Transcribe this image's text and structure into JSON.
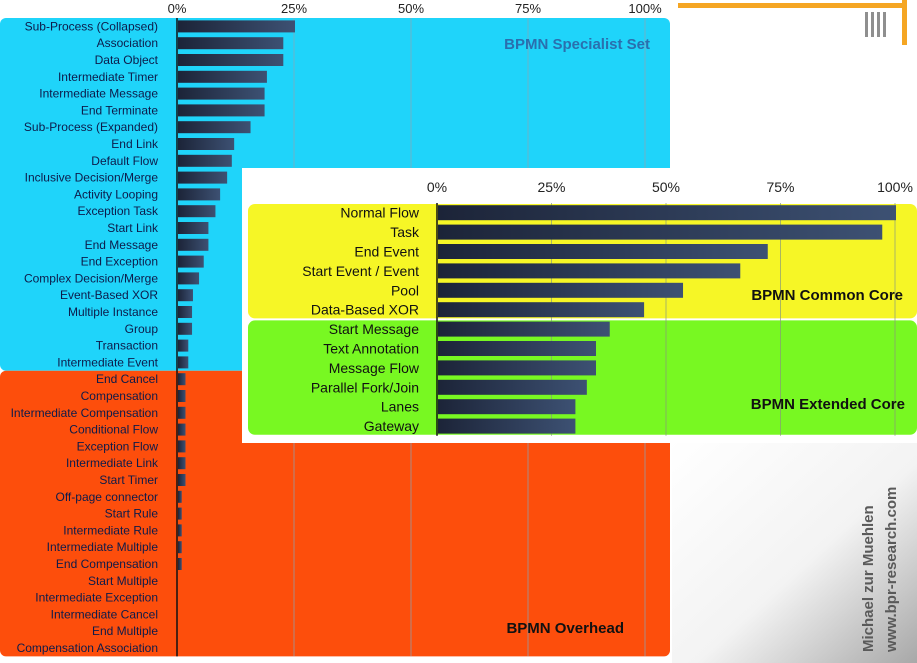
{
  "chart_data": [
    {
      "type": "bar",
      "orientation": "horizontal",
      "x_ticks": [
        "0%",
        "25%",
        "50%",
        "75%",
        "100%"
      ],
      "xlim": [
        0,
        100
      ],
      "grid": true,
      "groups": [
        {
          "name": "BPMN Specialist Set",
          "color": "#1fd4fa"
        },
        {
          "name": "BPMN Overhead",
          "color": "#fd4e0c"
        }
      ],
      "categories": [
        "Sub-Process (Collapsed)",
        "Association",
        "Data Object",
        "Intermediate Timer",
        "Intermediate Message",
        "End Terminate",
        "Sub-Process (Expanded)",
        "End Link",
        "Default Flow",
        "Inclusive Decision/Merge",
        "Activity Looping",
        "Exception Task",
        "Start Link",
        "End Message",
        "End Exception",
        "Complex Decision/Merge",
        "Event-Based XOR",
        "Multiple Instance",
        "Group",
        "Transaction",
        "Intermediate Event",
        "End Cancel",
        "Compensation",
        "Intermediate Compensation",
        "Conditional Flow",
        "Exception Flow",
        "Intermediate Link",
        "Start Timer",
        "Off-page connector",
        "Start Rule",
        "Intermediate Rule",
        "Intermediate Multiple",
        "End Compensation",
        "Start Multiple",
        "Intermediate Exception",
        "Intermediate Cancel",
        "End Multiple",
        "Compensation Association"
      ],
      "group_of_category": [
        0,
        0,
        0,
        0,
        0,
        0,
        0,
        0,
        0,
        0,
        0,
        0,
        0,
        0,
        0,
        0,
        0,
        0,
        0,
        0,
        0,
        1,
        1,
        1,
        1,
        1,
        1,
        1,
        1,
        1,
        1,
        1,
        1,
        1,
        1,
        1,
        1,
        1
      ],
      "values": [
        25,
        22.5,
        22.5,
        19,
        18.5,
        18.5,
        15.5,
        12,
        11.5,
        10.5,
        9,
        8,
        6.5,
        6.5,
        5.5,
        4.5,
        3.2,
        3,
        3,
        2.2,
        2.2,
        1.6,
        1.6,
        1.6,
        1.6,
        1.6,
        1.6,
        1.6,
        0.8,
        0.8,
        0.8,
        0.8,
        0.8,
        0,
        0,
        0,
        0,
        0
      ]
    },
    {
      "type": "bar",
      "orientation": "horizontal",
      "x_ticks": [
        "0%",
        "25%",
        "50%",
        "75%",
        "100%"
      ],
      "xlim": [
        0,
        100
      ],
      "grid": true,
      "groups": [
        {
          "name": "BPMN Common Core",
          "color": "#f6f626"
        },
        {
          "name": "BPMN Extended Core",
          "color": "#78f822"
        }
      ],
      "categories": [
        "Normal Flow",
        "Task",
        "End Event",
        "Start Event / Event",
        "Pool",
        "Data-Based XOR",
        "Start Message",
        "Text Annotation",
        "Message Flow",
        "Parallel Fork/Join",
        "Lanes",
        "Gateway"
      ],
      "group_of_category": [
        0,
        0,
        0,
        0,
        0,
        0,
        1,
        1,
        1,
        1,
        1,
        1
      ],
      "values": [
        100,
        97,
        72,
        66,
        53.5,
        45,
        37.5,
        34.5,
        34.5,
        32.5,
        30,
        30
      ]
    }
  ],
  "credit": {
    "author": "Michael zur Muehlen",
    "site": "www.bpr-research.com"
  },
  "colors": {
    "specialist": "#1fd4fa",
    "overhead": "#fd4e0c",
    "common": "#f6f626",
    "extended": "#78f822",
    "bar_dark": "#1c2438",
    "bar_light": "#3d5173",
    "accent": "#f5a623"
  },
  "icons": {
    "logo": "bpmn-poster-logo-icon"
  }
}
